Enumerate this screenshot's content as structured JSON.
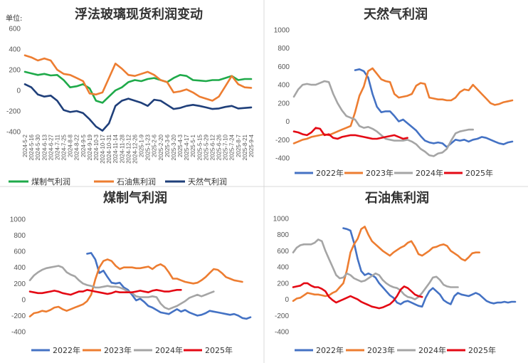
{
  "chart_data": [
    {
      "id": "panel1",
      "type": "line",
      "title": "浮法玻璃现货利润变动",
      "unit_label": "单位:",
      "ylim": [
        -400,
        600
      ],
      "yticks": [
        600,
        400,
        200,
        0,
        -200,
        -400
      ],
      "x": [
        "2024-5-2",
        "2024-5-16",
        "2024-5-30",
        "2024-6-13",
        "2024-6-27",
        "2024-7-11",
        "2024-7-25",
        "2024-8-8",
        "2024-8-22",
        "2024-9-5",
        "2024-9-19",
        "2024-10-3",
        "2024-10-17",
        "2024-10-31",
        "2024-11-14",
        "2024-11-28",
        "2024-12-12",
        "2024-12-26",
        "2025-1-9",
        "2025-1-23",
        "2025-2-6",
        "2025-2-20",
        "2025-3-6",
        "2025-3-20",
        "2025-4-3",
        "2025-4-17",
        "2025-5-1",
        "2025-5-15",
        "2025-5-29",
        "2025-6-12",
        "2025-6-26",
        "2025-7-10",
        "2025-7-24",
        "2025-8-7",
        "2025-8-21",
        "2025-9-4"
      ],
      "xtick_labels": [
        "2024-5-2",
        "2024-5-16",
        "2024-5-30",
        "2024-6-13",
        "2024-6-27",
        "2024-7-11",
        "2024-7-25",
        "2024-8-8",
        "2024-8-22",
        "2024-9-5",
        "2024-9-19",
        "2024-10-3",
        "2024-10-17",
        "2024-10-31",
        "2024-11-14",
        "2024-11-28",
        "2024-12-12",
        "2024-12-26",
        "2025-1-9",
        "2025-1-23",
        "2025-2-6",
        "2025-2-20",
        "2025-3-6",
        "2025-3-20",
        "2025-4-3",
        "2025-4-17",
        "2025-5-1",
        "2025-5-15",
        "2025-5-29",
        "2025-6-12",
        "2025-6-26",
        "2025-7-10",
        "2025-7-24",
        "2025-8-7",
        "2025-8-21",
        "2025-9-4"
      ],
      "series": [
        {
          "name": "煤制气利润",
          "color": "#1faa4a",
          "values": [
            180,
            165,
            150,
            160,
            145,
            150,
            100,
            30,
            40,
            60,
            20,
            -100,
            -120,
            -60,
            0,
            30,
            80,
            100,
            90,
            110,
            120,
            100,
            80,
            120,
            150,
            140,
            100,
            95,
            90,
            100,
            100,
            120,
            140,
            100,
            110,
            110
          ]
        },
        {
          "name": "石油焦利润",
          "color": "#ed7d31",
          "values": [
            340,
            320,
            290,
            310,
            290,
            200,
            160,
            150,
            120,
            90,
            -30,
            -40,
            -20,
            120,
            260,
            210,
            150,
            140,
            160,
            180,
            150,
            100,
            80,
            -20,
            -10,
            10,
            -20,
            -60,
            -80,
            -100,
            -60,
            40,
            140,
            60,
            30,
            25
          ]
        },
        {
          "name": "天然气利润",
          "color": "#1f3f7a",
          "values": [
            60,
            30,
            -40,
            -60,
            -50,
            -100,
            -190,
            -210,
            -200,
            -220,
            -280,
            -350,
            -390,
            -320,
            -150,
            -100,
            -80,
            -100,
            -120,
            -150,
            -90,
            -100,
            -140,
            -180,
            -170,
            -150,
            -140,
            -150,
            -165,
            -180,
            -175,
            -160,
            -150,
            -175,
            -170,
            -165
          ]
        }
      ]
    },
    {
      "id": "panel2",
      "type": "line",
      "title": "天然气利润",
      "ylim": [
        -400,
        1000
      ],
      "yticks": [
        1000,
        800,
        600,
        400,
        200,
        0,
        -200,
        -400
      ],
      "series": [
        {
          "name": "2022年",
          "color": "#4472c4",
          "values": [
            null,
            null,
            null,
            null,
            null,
            null,
            null,
            null,
            null,
            null,
            null,
            null,
            null,
            null,
            560,
            570,
            550,
            480,
            300,
            160,
            100,
            110,
            110,
            60,
            0,
            20,
            -20,
            -60,
            -100,
            -160,
            -210,
            -230,
            -240,
            -230,
            -240,
            -280,
            -240,
            -200,
            -210,
            -200,
            -220,
            -200,
            -190,
            -170,
            -180,
            -200,
            -220,
            -240,
            -250,
            -230,
            -220
          ]
        },
        {
          "name": "2023年",
          "color": "#ed7d31",
          "values": [
            -240,
            -220,
            -200,
            -190,
            -170,
            -160,
            -150,
            -140,
            -150,
            -130,
            -110,
            -90,
            -70,
            -50,
            100,
            280,
            380,
            550,
            580,
            520,
            460,
            440,
            430,
            300,
            260,
            270,
            280,
            300,
            390,
            420,
            410,
            260,
            250,
            240,
            240,
            230,
            230,
            260,
            320,
            350,
            340,
            400,
            350,
            300,
            250,
            200,
            180,
            190,
            210,
            220,
            230
          ]
        },
        {
          "name": "2024年",
          "color": "#a5a5a5",
          "values": [
            270,
            350,
            400,
            410,
            400,
            400,
            420,
            440,
            430,
            300,
            200,
            120,
            60,
            40,
            20,
            -50,
            -70,
            -60,
            -80,
            -110,
            -150,
            -190,
            -200,
            -210,
            -210,
            -210,
            -200,
            -220,
            -250,
            -300,
            -330,
            -370,
            -380,
            -350,
            -340,
            -300,
            -210,
            -130,
            -110,
            -100,
            -90,
            -90
          ]
        },
        {
          "name": "2025年",
          "color": "#e40914",
          "values": [
            -110,
            -120,
            -140,
            -150,
            -120,
            -70,
            -80,
            -150,
            -140,
            -180,
            -190,
            -170,
            -160,
            -150,
            -150,
            -160,
            -170,
            -180,
            -190,
            -190,
            -180,
            -170,
            -160,
            -150,
            -170,
            -190,
            -180
          ]
        }
      ]
    },
    {
      "id": "panel3",
      "type": "line",
      "title": "煤制气利润",
      "ylim": [
        -400,
        1000
      ],
      "yticks": [
        1000,
        800,
        600,
        400,
        200,
        0,
        -200,
        -400
      ],
      "series": [
        {
          "name": "2022年",
          "color": "#4472c4",
          "values": [
            null,
            null,
            null,
            null,
            null,
            null,
            null,
            null,
            null,
            null,
            null,
            null,
            null,
            null,
            570,
            580,
            500,
            330,
            360,
            280,
            210,
            200,
            210,
            150,
            120,
            60,
            -10,
            10,
            -30,
            -80,
            -100,
            -130,
            -160,
            -170,
            -180,
            -150,
            -120,
            -150,
            -130,
            -160,
            -180,
            -200,
            -190,
            -170,
            -140,
            -150,
            -160,
            -170,
            -180,
            -190,
            -180,
            -200,
            -230,
            -240,
            -220
          ]
        },
        {
          "name": "2023年",
          "color": "#ed7d31",
          "values": [
            -210,
            -170,
            -160,
            -140,
            -150,
            -130,
            -100,
            -90,
            -120,
            -140,
            -120,
            -100,
            -80,
            -60,
            -20,
            60,
            250,
            400,
            480,
            500,
            480,
            420,
            380,
            400,
            400,
            400,
            390,
            390,
            400,
            410,
            380,
            420,
            440,
            410,
            340,
            260,
            260,
            240,
            220,
            210,
            200,
            210,
            240,
            280,
            330,
            380,
            370,
            330,
            280,
            260,
            240,
            230,
            220
          ]
        },
        {
          "name": "2024年",
          "color": "#a5a5a5",
          "values": [
            240,
            300,
            340,
            370,
            390,
            400,
            410,
            420,
            400,
            340,
            310,
            290,
            240,
            200,
            180,
            170,
            150,
            150,
            160,
            170,
            160,
            160,
            150,
            130,
            100,
            80,
            40,
            30,
            30,
            30,
            40,
            30,
            -50,
            -100,
            -120,
            -100,
            -80,
            -50,
            -20,
            20,
            40,
            60,
            40,
            60,
            80,
            100
          ]
        },
        {
          "name": "2025年",
          "color": "#e40914",
          "values": [
            100,
            90,
            80,
            80,
            90,
            100,
            110,
            100,
            80,
            70,
            60,
            80,
            100,
            100,
            120,
            110,
            100,
            90,
            80,
            70,
            80,
            100,
            90,
            90,
            90,
            90,
            100,
            110,
            100,
            90,
            110,
            120,
            110,
            100,
            100,
            110,
            120,
            120
          ]
        }
      ]
    },
    {
      "id": "panel4",
      "type": "line",
      "title": "石油焦利润",
      "ylim": [
        -400,
        1000
      ],
      "yticks": [
        1000,
        800,
        600,
        400,
        200,
        0,
        -200,
        -400
      ],
      "series": [
        {
          "name": "2022年",
          "color": "#4472c4",
          "values": [
            null,
            null,
            null,
            null,
            null,
            null,
            null,
            null,
            null,
            null,
            null,
            null,
            null,
            null,
            880,
            870,
            850,
            700,
            500,
            350,
            300,
            320,
            300,
            270,
            200,
            150,
            100,
            50,
            20,
            -40,
            -60,
            -30,
            -20,
            -40,
            -60,
            -80,
            -90,
            20,
            100,
            140,
            100,
            60,
            -10,
            -40,
            -60,
            40,
            80,
            60,
            50,
            40,
            60,
            80,
            60,
            20,
            -20,
            -40,
            -50,
            -40,
            -40,
            -30,
            -40,
            -30,
            -30
          ]
        },
        {
          "name": "2023年",
          "color": "#ed7d31",
          "values": [
            -20,
            10,
            20,
            50,
            80,
            70,
            60,
            60,
            50,
            40,
            50,
            80,
            100,
            150,
            200,
            360,
            580,
            680,
            750,
            870,
            900,
            800,
            720,
            680,
            640,
            600,
            570,
            540,
            580,
            610,
            640,
            660,
            700,
            720,
            650,
            560,
            540,
            570,
            600,
            640,
            650,
            670,
            680,
            660,
            600,
            570,
            540,
            500,
            480,
            520,
            570,
            580,
            580
          ]
        },
        {
          "name": "2024年",
          "color": "#a5a5a5",
          "values": [
            580,
            640,
            670,
            680,
            680,
            680,
            700,
            740,
            720,
            600,
            500,
            400,
            300,
            260,
            270,
            320,
            300,
            260,
            240,
            220,
            230,
            260,
            290,
            320,
            300,
            240,
            200,
            170,
            150,
            140,
            110,
            60,
            30,
            20,
            0,
            30,
            80,
            140,
            200,
            270,
            280,
            240,
            180,
            160,
            150,
            150,
            150
          ]
        },
        {
          "name": "2025年",
          "color": "#e40914",
          "values": [
            150,
            160,
            170,
            200,
            200,
            170,
            150,
            150,
            130,
            100,
            30,
            -10,
            -40,
            -20,
            0,
            20,
            40,
            20,
            0,
            -30,
            -50,
            -70,
            -90,
            -100,
            -110,
            -100,
            -80,
            -60,
            -20,
            40,
            120,
            160,
            140,
            100,
            60,
            40,
            30
          ]
        }
      ]
    }
  ]
}
